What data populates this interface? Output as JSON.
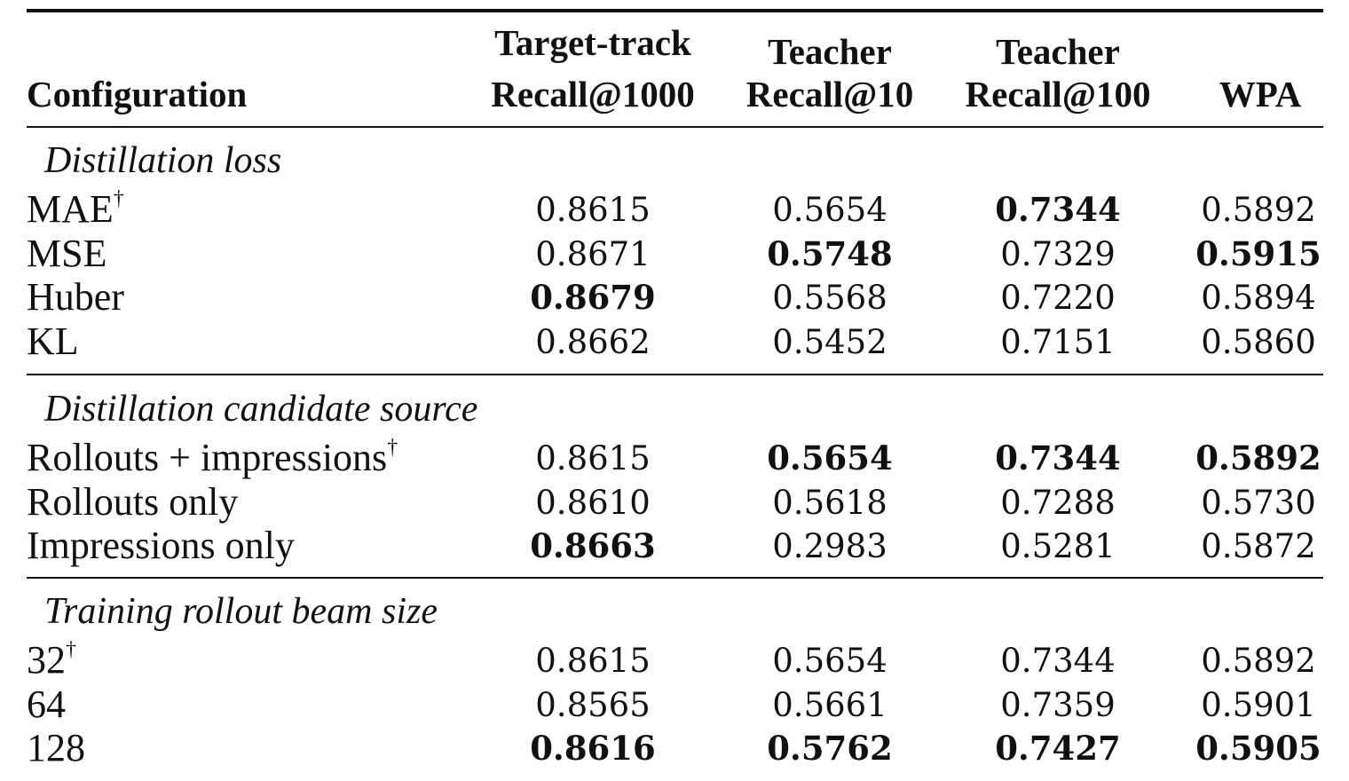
{
  "header": {
    "configuration": "Configuration",
    "col1_line1": "Target-track",
    "col1_line2": "Recall@1000",
    "col2_line1": "Teacher",
    "col2_line2": "Recall@10",
    "col3_line1": "Teacher",
    "col3_line2": "Recall@100",
    "col4": "WPA"
  },
  "sections": [
    {
      "title": "Distillation loss",
      "rows": [
        {
          "label": "MAE",
          "mark": "†",
          "values": [
            "0.8615",
            "0.5654",
            "0.7344",
            "0.5892"
          ],
          "bold": [
            false,
            false,
            true,
            false
          ]
        },
        {
          "label": "MSE",
          "mark": "",
          "values": [
            "0.8671",
            "0.5748",
            "0.7329",
            "0.5915"
          ],
          "bold": [
            false,
            true,
            false,
            true
          ]
        },
        {
          "label": "Huber",
          "mark": "",
          "values": [
            "0.8679",
            "0.5568",
            "0.7220",
            "0.5894"
          ],
          "bold": [
            true,
            false,
            false,
            false
          ]
        },
        {
          "label": "KL",
          "mark": "",
          "values": [
            "0.8662",
            "0.5452",
            "0.7151",
            "0.5860"
          ],
          "bold": [
            false,
            false,
            false,
            false
          ]
        }
      ]
    },
    {
      "title": "Distillation candidate source",
      "rows": [
        {
          "label": "Rollouts + impressions",
          "mark": "†",
          "values": [
            "0.8615",
            "0.5654",
            "0.7344",
            "0.5892"
          ],
          "bold": [
            false,
            true,
            true,
            true
          ]
        },
        {
          "label": "Rollouts only",
          "mark": "",
          "values": [
            "0.8610",
            "0.5618",
            "0.7288",
            "0.5730"
          ],
          "bold": [
            false,
            false,
            false,
            false
          ]
        },
        {
          "label": "Impressions only",
          "mark": "",
          "values": [
            "0.8663",
            "0.2983",
            "0.5281",
            "0.5872"
          ],
          "bold": [
            true,
            false,
            false,
            false
          ]
        }
      ]
    },
    {
      "title": "Training rollout beam size",
      "rows": [
        {
          "label": "32",
          "mark": "†",
          "values": [
            "0.8615",
            "0.5654",
            "0.7344",
            "0.5892"
          ],
          "bold": [
            false,
            false,
            false,
            false
          ]
        },
        {
          "label": "64",
          "mark": "",
          "values": [
            "0.8565",
            "0.5661",
            "0.7359",
            "0.5901"
          ],
          "bold": [
            false,
            false,
            false,
            false
          ]
        },
        {
          "label": "128",
          "mark": "",
          "values": [
            "0.8616",
            "0.5762",
            "0.7427",
            "0.5905"
          ],
          "bold": [
            true,
            true,
            true,
            true
          ]
        }
      ]
    }
  ]
}
